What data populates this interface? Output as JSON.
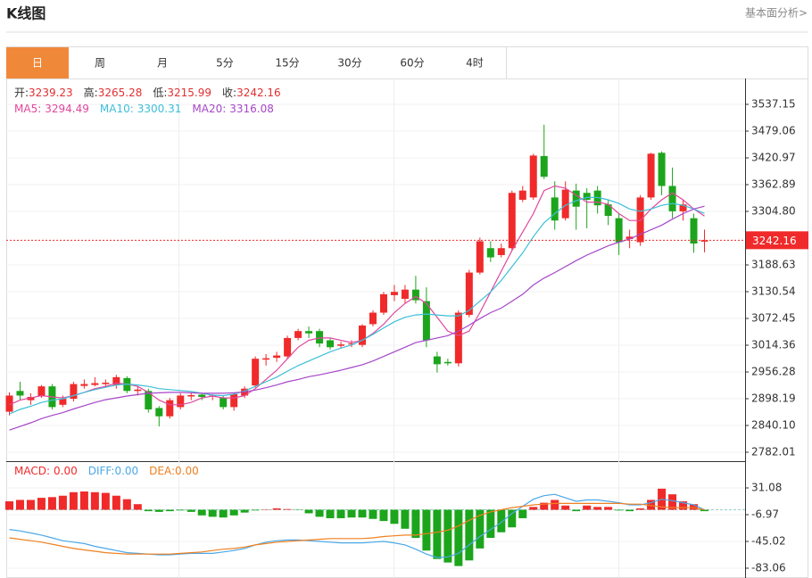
{
  "header": {
    "title": "K线图",
    "link": "基本面分析>"
  },
  "tabs": [
    "日",
    "周",
    "月",
    "5分",
    "15分",
    "30分",
    "60分",
    "4时"
  ],
  "active_tab": 0,
  "chart_data": [
    {
      "type": "candlestick",
      "up_color": "#f02a2a",
      "down_color": "#1ca51c",
      "open": [
        2870,
        2915,
        2895,
        2903,
        2925,
        2885,
        2898,
        2926,
        2928,
        2930,
        2928,
        2943,
        2915,
        2915,
        2878,
        2860,
        2880,
        2903,
        2907,
        2903,
        2900,
        2880,
        2905,
        2927,
        2983,
        2987,
        2990,
        3030,
        3045,
        3045,
        3025,
        3013,
        3016,
        3015,
        3060,
        3085,
        3123,
        3115,
        3135,
        3110,
        2990,
        2978,
        2975,
        3080,
        3172,
        3225,
        3210,
        3225,
        3330,
        3335,
        3425,
        3335,
        3290,
        3350,
        3345,
        3350,
        3320,
        3290,
        3245,
        3238,
        3335,
        3432,
        3360,
        3305,
        3290,
        3239.23
      ],
      "high": [
        2912,
        2935,
        2910,
        2928,
        2930,
        2905,
        2935,
        2940,
        2945,
        2940,
        2950,
        2947,
        2925,
        2920,
        2882,
        2900,
        2910,
        2912,
        2910,
        2908,
        2905,
        2912,
        2925,
        2990,
        2995,
        3000,
        3035,
        3050,
        3055,
        3050,
        3030,
        3022,
        3025,
        3060,
        3090,
        3130,
        3145,
        3145,
        3165,
        3140,
        3000,
        2985,
        3090,
        3178,
        3248,
        3240,
        3235,
        3350,
        3360,
        3430,
        3493,
        3370,
        3370,
        3365,
        3355,
        3360,
        3330,
        3300,
        3265,
        3340,
        3432,
        3435,
        3400,
        3330,
        3300,
        3265.28
      ],
      "low": [
        2862,
        2895,
        2885,
        2900,
        2875,
        2880,
        2892,
        2920,
        2925,
        2922,
        2920,
        2910,
        2905,
        2868,
        2838,
        2855,
        2875,
        2895,
        2895,
        2895,
        2875,
        2872,
        2900,
        2922,
        2970,
        2978,
        2985,
        3025,
        3030,
        3010,
        3005,
        3008,
        3010,
        3010,
        3055,
        3080,
        3110,
        3105,
        3105,
        3010,
        2955,
        2970,
        2968,
        3075,
        3168,
        3195,
        3205,
        3220,
        3325,
        3330,
        3375,
        3265,
        3285,
        3265,
        3268,
        3300,
        3275,
        3210,
        3225,
        3230,
        3330,
        3340,
        3290,
        3285,
        3215,
        3215.99
      ],
      "close": [
        2905,
        2905,
        2902,
        2925,
        2880,
        2898,
        2930,
        2930,
        2932,
        2933,
        2945,
        2915,
        2918,
        2875,
        2860,
        2895,
        2905,
        2906,
        2902,
        2905,
        2880,
        2908,
        2920,
        2985,
        2986,
        2992,
        3030,
        3045,
        3040,
        3018,
        3010,
        3016,
        3018,
        3057,
        3085,
        3125,
        3130,
        3135,
        3112,
        3025,
        2973,
        2975,
        3085,
        3172,
        3240,
        3205,
        3225,
        3345,
        3350,
        3426,
        3380,
        3285,
        3352,
        3315,
        3330,
        3318,
        3295,
        3238,
        3250,
        3335,
        3430,
        3360,
        3305,
        3320,
        3235,
        3242.16
      ],
      "info": [
        {
          "label": "开:",
          "value": "3239.23"
        },
        {
          "label": "高:",
          "value": "3265.28"
        },
        {
          "label": "低:",
          "value": "3215.99"
        },
        {
          "label": "收:",
          "value": "3242.16"
        }
      ],
      "series": [
        {
          "name": "MA5:",
          "legend_value": "3294.49",
          "color": "#e0479e",
          "values": [
            2885,
            2895,
            2900,
            2905,
            2902,
            2900,
            2905,
            2912,
            2920,
            2925,
            2932,
            2930,
            2925,
            2912,
            2895,
            2885,
            2885,
            2890,
            2900,
            2904,
            2900,
            2900,
            2905,
            2920,
            2940,
            2960,
            2985,
            3010,
            3025,
            3030,
            3030,
            3025,
            3020,
            3025,
            3040,
            3060,
            3085,
            3105,
            3120,
            3105,
            3075,
            3045,
            3035,
            3045,
            3085,
            3130,
            3175,
            3220,
            3260,
            3300,
            3350,
            3360,
            3355,
            3340,
            3325,
            3325,
            3320,
            3300,
            3285,
            3285,
            3310,
            3330,
            3345,
            3330,
            3310,
            3294.49
          ]
        },
        {
          "name": "MA10:",
          "legend_value": "3300.31",
          "color": "#3cbfd8",
          "values": [
            2865,
            2875,
            2882,
            2890,
            2895,
            2898,
            2905,
            2912,
            2918,
            2923,
            2928,
            2930,
            2928,
            2925,
            2920,
            2918,
            2916,
            2914,
            2910,
            2906,
            2905,
            2908,
            2915,
            2925,
            2935,
            2945,
            2958,
            2970,
            2980,
            2990,
            3000,
            3008,
            3015,
            3025,
            3038,
            3052,
            3065,
            3075,
            3080,
            3082,
            3080,
            3078,
            3078,
            3090,
            3110,
            3130,
            3155,
            3185,
            3215,
            3250,
            3280,
            3300,
            3318,
            3328,
            3335,
            3335,
            3330,
            3322,
            3310,
            3305,
            3310,
            3318,
            3322,
            3318,
            3310,
            3300.31
          ]
        },
        {
          "name": "MA20:",
          "legend_value": "3316.08",
          "color": "#a646c8",
          "values": [
            2830,
            2838,
            2846,
            2855,
            2862,
            2868,
            2876,
            2883,
            2890,
            2896,
            2900,
            2904,
            2907,
            2910,
            2911,
            2912,
            2912,
            2911,
            2910,
            2910,
            2910,
            2911,
            2913,
            2917,
            2922,
            2928,
            2935,
            2940,
            2946,
            2950,
            2955,
            2960,
            2966,
            2972,
            2980,
            2990,
            3000,
            3010,
            3020,
            3025,
            3030,
            3035,
            3045,
            3058,
            3072,
            3085,
            3095,
            3110,
            3125,
            3145,
            3160,
            3172,
            3185,
            3198,
            3210,
            3220,
            3230,
            3238,
            3245,
            3255,
            3265,
            3275,
            3288,
            3300,
            3310,
            3316.08
          ]
        }
      ],
      "last_price": 3242.16,
      "last_price_color": "#f02a2a",
      "ylim": [
        2762.65,
        3593.29
      ],
      "yticks": [
        {
          "value": 3537.15,
          "label": "3537.15"
        },
        {
          "value": 3479.06,
          "label": "3479.06"
        },
        {
          "value": 3420.97,
          "label": "3420.97"
        },
        {
          "value": 3362.89,
          "label": "3362.89"
        },
        {
          "value": 3304.8,
          "label": "3304.80"
        },
        {
          "value": 3188.63,
          "label": "3188.63"
        },
        {
          "value": 3130.54,
          "label": "3130.54"
        },
        {
          "value": 3072.45,
          "label": "3072.45"
        },
        {
          "value": 3014.36,
          "label": "3014.36"
        },
        {
          "value": 2956.28,
          "label": "2956.28"
        },
        {
          "value": 2898.19,
          "label": "2898.19"
        },
        {
          "value": 2840.1,
          "label": "2840.10"
        },
        {
          "value": 2782.01,
          "label": "2782.01"
        }
      ],
      "grid": true
    },
    {
      "type": "macd",
      "up_color": "#f02a2a",
      "down_color": "#1ca51c",
      "series": [
        {
          "name": "MACD:",
          "legend_value": "0.00",
          "style": "bar",
          "color": "#f02a2a",
          "values": [
            12,
            14,
            14,
            17,
            18,
            20,
            25,
            26,
            25,
            24,
            20,
            15,
            8,
            -2,
            -3,
            -2,
            -1,
            -3,
            -8,
            -10,
            -11,
            -8,
            -4,
            -1,
            0.5,
            2,
            1,
            -0.5,
            -5,
            -10,
            -12,
            -12,
            -11,
            -11,
            -13,
            -16,
            -20,
            -27,
            -40,
            -58,
            -70,
            -75,
            -80,
            -72,
            -55,
            -40,
            -32,
            -25,
            -12,
            4,
            10,
            14,
            6,
            -2,
            6,
            4,
            4,
            -1,
            -2,
            2,
            14,
            30,
            22,
            12,
            8,
            -2
          ]
        },
        {
          "name": "DIFF:",
          "legend_value": "0.00",
          "style": "line",
          "color": "#4aa8e8",
          "values": [
            -28,
            -30,
            -33,
            -36,
            -40,
            -44,
            -46,
            -48,
            -52,
            -55,
            -58,
            -61,
            -62,
            -63,
            -64,
            -64,
            -63,
            -62,
            -62,
            -62,
            -60,
            -58,
            -55,
            -50,
            -46,
            -44,
            -43,
            -43,
            -44,
            -45,
            -46,
            -47,
            -47,
            -47,
            -46,
            -45,
            -47,
            -50,
            -56,
            -63,
            -68,
            -67,
            -62,
            -50,
            -38,
            -28,
            -18,
            -5,
            5,
            15,
            20,
            22,
            17,
            12,
            14,
            14,
            12,
            10,
            7,
            7,
            10,
            15,
            13,
            10,
            7,
            0
          ]
        },
        {
          "name": "DEA:",
          "legend_value": "0.00",
          "style": "line",
          "color": "#f08020",
          "values": [
            -40,
            -42,
            -44,
            -46,
            -49,
            -52,
            -55,
            -57,
            -59,
            -61,
            -62,
            -63,
            -63,
            -63,
            -63,
            -63,
            -62,
            -61,
            -60,
            -58,
            -56,
            -55,
            -53,
            -50,
            -48,
            -46,
            -45,
            -44,
            -43,
            -42,
            -41,
            -41,
            -41,
            -41,
            -40,
            -38,
            -37,
            -36,
            -36,
            -34,
            -32,
            -29,
            -23,
            -15,
            -8,
            -3,
            0,
            3,
            5,
            7,
            8,
            9,
            9,
            9,
            9,
            9,
            9,
            9,
            8,
            8,
            6,
            4,
            3,
            3,
            3,
            0
          ]
        }
      ],
      "ylim": [
        -97.01,
        69.13
      ],
      "yticks": [
        31.08,
        -6.97,
        -45.02,
        -83.06
      ],
      "grid": true
    }
  ]
}
